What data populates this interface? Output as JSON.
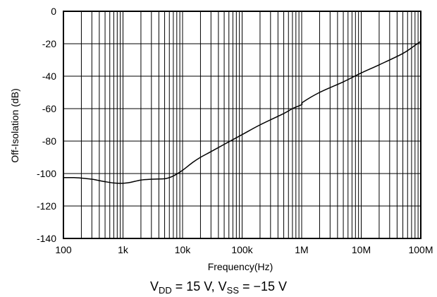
{
  "chart_data": {
    "type": "line",
    "xscale": "log",
    "xlim": [
      100,
      100000000
    ],
    "ylim": [
      -140,
      0
    ],
    "grid": true,
    "xlabel": "Frequency(Hz)",
    "ylabel": "Off-Isolation (dB)",
    "x_ticks": [
      100,
      1000,
      10000,
      100000,
      1000000,
      10000000,
      100000000
    ],
    "x_tick_labels": [
      "100",
      "1k",
      "10k",
      "100k",
      "1M",
      "10M",
      "100M"
    ],
    "y_ticks": [
      0,
      -20,
      -40,
      -60,
      -80,
      -100,
      -120,
      -140
    ],
    "y_tick_labels": [
      "0",
      "-20",
      "-40",
      "-60",
      "-80",
      "-100",
      "-120",
      "-140"
    ],
    "line_color": "#000000",
    "series": [
      {
        "x": [
          100,
          150,
          200,
          300,
          500,
          700,
          1000,
          1300,
          2000,
          3000,
          5000,
          6000,
          7000,
          8000,
          10000,
          15000,
          20000,
          30000,
          50000,
          100000,
          200000,
          500000,
          700000,
          1000000,
          1050000,
          2000000,
          5000000,
          10000000,
          20000000,
          50000000,
          80000000,
          100000000
        ],
        "y": [
          -102.5,
          -102.5,
          -102.8,
          -103.5,
          -105,
          -105.8,
          -106,
          -105.5,
          -104,
          -103.5,
          -103.2,
          -102.5,
          -101.5,
          -100.3,
          -98,
          -93,
          -90,
          -86.5,
          -82,
          -76,
          -70,
          -63,
          -60,
          -57.5,
          -56,
          -50,
          -43.5,
          -38,
          -33,
          -26,
          -21,
          -18.5
        ]
      }
    ]
  },
  "caption": {
    "v_dd_main": "V",
    "v_dd_sub": "DD",
    "v_dd_value": " = 15 V, ",
    "v_ss_main": "V",
    "v_ss_sub": "SS",
    "v_ss_value": " = −15 V"
  }
}
